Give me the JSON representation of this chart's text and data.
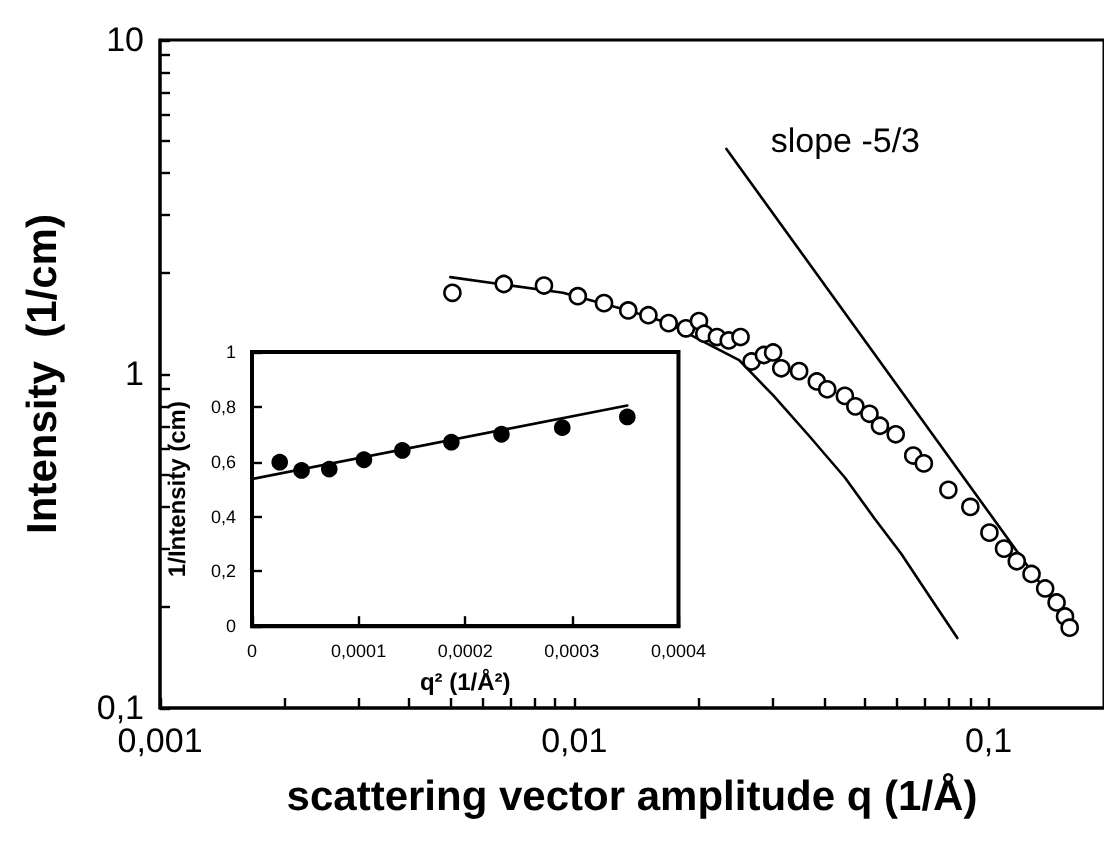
{
  "chart_data": [
    {
      "type": "scatter",
      "xlabel": "scattering vector amplitude q (1/Å)",
      "ylabel": "Intensity  (1/cm)",
      "log": "xy",
      "marker": "circle",
      "grid": false,
      "xlim": [
        0.001,
        0.19
      ],
      "ylim": [
        0.1,
        10
      ],
      "xticks": [
        {
          "value": 0.001,
          "label": "0,001"
        },
        {
          "value": 0.002,
          "label": null
        },
        {
          "value": 0.003,
          "label": null
        },
        {
          "value": 0.004,
          "label": null
        },
        {
          "value": 0.005,
          "label": null
        },
        {
          "value": 0.006,
          "label": null
        },
        {
          "value": 0.007,
          "label": null
        },
        {
          "value": 0.008,
          "label": null
        },
        {
          "value": 0.009,
          "label": null
        },
        {
          "value": 0.01,
          "label": "0,01"
        },
        {
          "value": 0.02,
          "label": null
        },
        {
          "value": 0.03,
          "label": null
        },
        {
          "value": 0.04,
          "label": null
        },
        {
          "value": 0.05,
          "label": null
        },
        {
          "value": 0.06,
          "label": null
        },
        {
          "value": 0.07,
          "label": null
        },
        {
          "value": 0.08,
          "label": null
        },
        {
          "value": 0.09,
          "label": null
        },
        {
          "value": 0.1,
          "label": "0,1"
        }
      ],
      "yticks": [
        {
          "value": 0.1,
          "label": "0,1"
        },
        {
          "value": 0.2,
          "label": null
        },
        {
          "value": 0.3,
          "label": null
        },
        {
          "value": 0.4,
          "label": null
        },
        {
          "value": 0.5,
          "label": null
        },
        {
          "value": 0.6,
          "label": null
        },
        {
          "value": 0.7,
          "label": null
        },
        {
          "value": 0.8,
          "label": null
        },
        {
          "value": 0.9,
          "label": null
        },
        1,
        {
          "value": 2,
          "label": null
        },
        {
          "value": 3,
          "label": null
        },
        {
          "value": 4,
          "label": null
        },
        {
          "value": 5,
          "label": null
        },
        {
          "value": 6,
          "label": null
        },
        {
          "value": 7,
          "label": null
        },
        {
          "value": 8,
          "label": null
        },
        {
          "value": 9,
          "label": null
        },
        10
      ],
      "annotations": [
        "slope -5/3"
      ],
      "series": [
        {
          "type": "scatter",
          "color": "#000000",
          "x": [
            0.00508,
            0.00676,
            0.00845,
            0.0102,
            0.0118,
            0.0135,
            0.0151,
            0.0169,
            0.0186,
            0.02,
            0.0206,
            0.0221,
            0.0236,
            0.0252,
            0.0268,
            0.0287,
            0.0302,
            0.0316,
            0.0349,
            0.0385,
            0.0408,
            0.045,
            0.0477,
            0.0516,
            0.0547,
            0.0597,
            0.0658,
            0.0698,
            0.08,
            0.0904,
            0.1005,
            0.109,
            0.117,
            0.127,
            0.137,
            0.146,
            0.153,
            0.157
          ],
          "values": [
            1.75,
            1.86,
            1.84,
            1.71,
            1.63,
            1.55,
            1.5,
            1.42,
            1.37,
            1.44,
            1.32,
            1.29,
            1.26,
            1.29,
            1.09,
            1.14,
            1.16,
            1.04,
            1.02,
            0.95,
            0.9,
            0.86,
            0.8,
            0.76,
            0.7,
            0.66,
            0.57,
            0.54,
            0.45,
            0.4,
            0.335,
            0.3,
            0.275,
            0.252,
            0.228,
            0.207,
            0.188,
            0.174
          ]
        },
        {
          "type": "line",
          "color": "#000000",
          "marker": "none",
          "x": [
            0.00502,
            0.00939,
            0.0135,
            0.0169,
            0.02,
            0.025,
            0.0303,
            0.037,
            0.045,
            0.053,
            0.0615,
            0.072,
            0.0841
          ],
          "values": [
            1.95,
            1.75,
            1.55,
            1.42,
            1.27,
            1.1,
            0.86,
            0.65,
            0.49,
            0.37,
            0.29,
            0.216,
            0.162
          ]
        },
        {
          "type": "line",
          "color": "#000000",
          "marker": "none",
          "x": [
            0.0233,
            0.157
          ],
          "values": [
            4.72,
            0.178
          ]
        }
      ]
    },
    {
      "type": "scatter",
      "xlabel": "q² (1/Å²)",
      "ylabel": "1/Intensity (cm)",
      "marker": "circle",
      "grid": false,
      "xlim": [
        0,
        0.0004
      ],
      "ylim": [
        0,
        1
      ],
      "xticks": [
        0,
        {
          "value": 0.0001,
          "label": "0,0001"
        },
        {
          "value": 0.0002,
          "label": "0,0002"
        },
        {
          "value": 0.0003,
          "label": "0,0003"
        },
        {
          "value": 0.0004,
          "label": "0,0004"
        }
      ],
      "yticks": [
        0,
        {
          "value": 0.2,
          "label": "0,2"
        },
        {
          "value": 0.4,
          "label": "0,4"
        },
        {
          "value": 0.6,
          "label": "0,6"
        },
        {
          "value": 0.8,
          "label": "0,8"
        },
        1
      ],
      "series": [
        {
          "type": "scatter",
          "color": "#000000",
          "x": [
            2.6e-05,
            4.65e-05,
            7.25e-05,
            0.000105,
            0.000141,
            0.000187,
            0.000234,
            0.000291,
            0.000352
          ],
          "values": [
            0.598,
            0.568,
            0.573,
            0.607,
            0.641,
            0.671,
            0.7,
            0.724,
            0.763
          ]
        },
        {
          "type": "line",
          "color": "#000000",
          "marker": "none",
          "x": [
            0,
            0.000352
          ],
          "values": [
            0.537,
            0.805
          ]
        }
      ]
    }
  ]
}
